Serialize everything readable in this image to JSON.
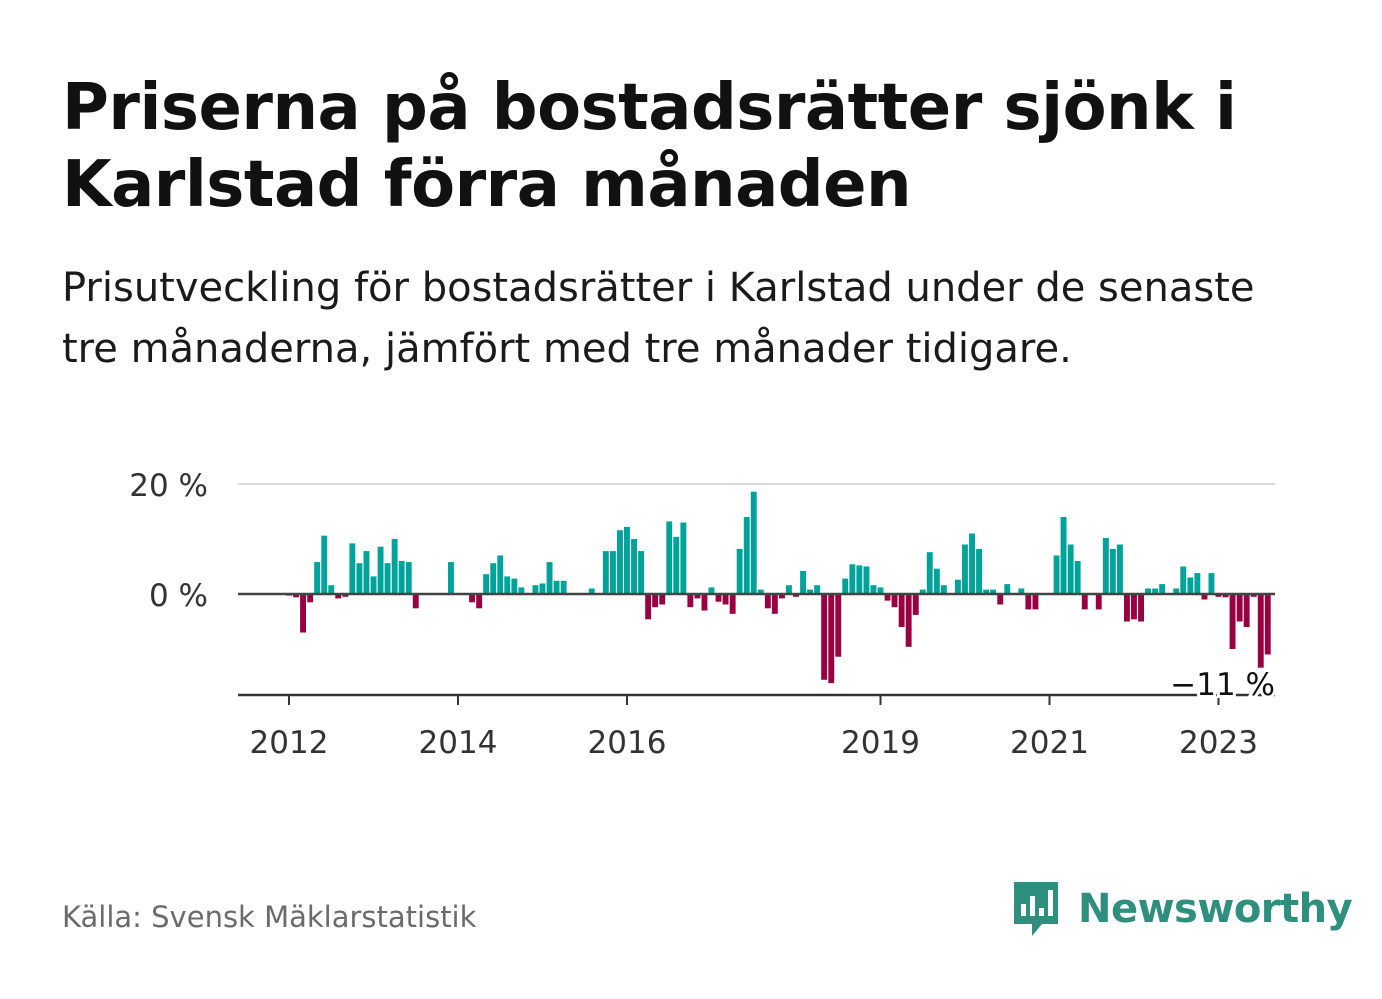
{
  "title": "Priserna på bostadsrätter sjönk i Karlstad förra månaden",
  "subtitle": "Prisutveckling för bostadsrätter i Karlstad under de senaste tre månaderna, jämfört med tre månader tidigare.",
  "source": "Källa: Svensk Mäklarstatistik",
  "logo": {
    "name": "Newsworthy",
    "icon": "bar-chart-speech-bubble-icon",
    "color": "#2f8f7f"
  },
  "colors": {
    "positive": "#00a399",
    "negative": "#990042",
    "zero_line": "#444444",
    "grid": "#d9d9d9"
  },
  "chart_data": {
    "type": "bar",
    "title": "",
    "xlabel": "",
    "ylabel": "",
    "x_ticks": [
      "2012",
      "2014",
      "2016",
      "2019",
      "2021",
      "2023"
    ],
    "y_ticks": [
      "20 %",
      "0 %"
    ],
    "ylim": [
      -18,
      20
    ],
    "grid": true,
    "annotation": {
      "text": "−11 %",
      "points_to": "last bar"
    },
    "series": [
      {
        "name": "",
        "start": "2012-01",
        "values": [
          -0.3,
          -0.6,
          -7.0,
          -1.5,
          5.8,
          10.6,
          1.6,
          -0.8,
          -0.5,
          9.2,
          5.6,
          7.8,
          3.2,
          8.6,
          5.6,
          10.0,
          6.0,
          5.8,
          -2.6,
          0,
          0,
          0,
          0,
          5.8,
          0,
          0,
          -1.5,
          -2.6,
          3.6,
          5.6,
          7.0,
          3.2,
          2.8,
          1.2,
          0,
          1.6,
          1.9,
          5.8,
          2.4,
          2.4,
          0,
          0,
          0,
          1.0,
          0,
          7.8,
          7.8,
          11.6,
          12.2,
          10.0,
          7.8,
          -4.6,
          -2.4,
          -1.9,
          13.2,
          10.4,
          13.0,
          -2.4,
          -0.8,
          -3.0,
          1.2,
          -1.4,
          -1.9,
          -3.6,
          8.2,
          14.0,
          18.6,
          0.8,
          -2.6,
          -3.6,
          -0.8,
          1.6,
          -0.5,
          4.2,
          0.8,
          1.6,
          -15.6,
          -16.2,
          -11.4,
          2.8,
          5.4,
          5.2,
          5.0,
          1.6,
          1.2,
          -1.2,
          -2.4,
          -6.0,
          -9.6,
          -3.8,
          0.8,
          7.6,
          4.6,
          1.6,
          0,
          2.6,
          9.0,
          11.0,
          8.2,
          0.8,
          0.8,
          -1.9,
          1.8,
          0,
          1.0,
          -2.8,
          -2.8,
          0,
          0,
          7.0,
          14.0,
          9.0,
          6.0,
          -2.8,
          0,
          -2.8,
          10.2,
          8.2,
          9.0,
          -5.0,
          -4.6,
          -5.0,
          1.0,
          1.0,
          1.8,
          0,
          1.0,
          5.0,
          3.0,
          3.8,
          -1.0,
          3.8,
          -0.5,
          -0.6,
          -10.0,
          -5.0,
          -6.0,
          -0.5,
          -13.4,
          -11.0
        ]
      }
    ]
  }
}
